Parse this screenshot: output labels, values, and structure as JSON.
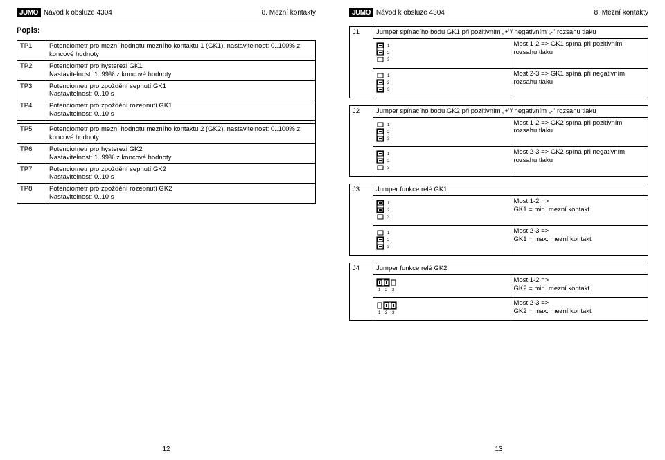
{
  "header": {
    "brand": "JUMO",
    "title": "Návod k obsluze 4304",
    "section": "8. Mezní kontakty"
  },
  "left": {
    "heading": "Popis:",
    "rows": [
      {
        "k": "TP1",
        "v": "Potenciometr pro mezní hodnotu mezního kontaktu 1 (GK1), nastavitelnost: 0..100% z koncové hodnoty"
      },
      {
        "k": "TP2",
        "v": "Potenciometr pro hysterezi GK1\nNastavitelnost: 1..99% z koncové hodnoty"
      },
      {
        "k": "TP3",
        "v": "Potenciometr pro zpoždění sepnutí GK1\nNastavitelnost: 0..10 s"
      },
      {
        "k": "TP4",
        "v": "Potenciometr pro zpoždění rozepnutí GK1\nNastavitelnost: 0..10 s"
      },
      {
        "k": "",
        "v": ""
      },
      {
        "k": "TP5",
        "v": "Potenciometr pro mezní hodnotu mezního kontaktu 2 (GK2), nastavitelnost: 0..100% z koncové hodnoty"
      },
      {
        "k": "TP6",
        "v": "Potenciometr pro hysterezi GK2\nNastavitelnost: 1..99% z koncové hodnoty"
      },
      {
        "k": "TP7",
        "v": "Potenciometr pro zpoždění sepnutí GK2\nNastavitelnost: 0..10 s"
      },
      {
        "k": "TP8",
        "v": "Potenciometr pro zpoždění rozepnutí GK2\nNastavitelnost: 0..10 s"
      }
    ],
    "pagenum": "12"
  },
  "right": {
    "groups": [
      {
        "j": "J1",
        "title": "Jumper spínacího bodu GK1 při pozitivním „+\"/ negativním „-\" rozsahu tlaku",
        "items": [
          {
            "icon": "v12",
            "txt": "Most 1-2 => GK1 spíná při pozitivním rozsahu tlaku"
          },
          {
            "icon": "v23",
            "txt": "Most 2-3 => GK1 spíná při negativním rozsahu tlaku"
          }
        ]
      },
      {
        "j": "J2",
        "title": "Jumper spínacího bodu GK2 při pozitivním „+\"/ negativním „-\" rozsahu tlaku",
        "items": [
          {
            "icon": "v23",
            "txt": "Most 1-2 => GK2 spíná při pozitivním rozsahu tlaku"
          },
          {
            "icon": "v12",
            "txt": "Most 2-3 => GK2 spíná při negativním rozsahu tlaku"
          }
        ]
      },
      {
        "j": "J3",
        "title": "Jumper funkce relé GK1",
        "items": [
          {
            "icon": "v12",
            "txt": "Most 1-2 =>\nGK1 = min. mezní kontakt"
          },
          {
            "icon": "v23",
            "txt": "Most 2-3 =>\nGK1 = max. mezní kontakt"
          }
        ]
      },
      {
        "j": "J4",
        "title": "Jumper funkce relé GK2",
        "items": [
          {
            "icon": "h12",
            "txt": "Most 1-2 =>\nGK2 = min. mezní kontakt"
          },
          {
            "icon": "h23",
            "txt": "Most 2-3 =>\nGK2 = max. mezní kontakt"
          }
        ]
      }
    ],
    "pagenum": "13"
  },
  "style": {
    "accent": "#000000",
    "bg": "#ffffff"
  }
}
